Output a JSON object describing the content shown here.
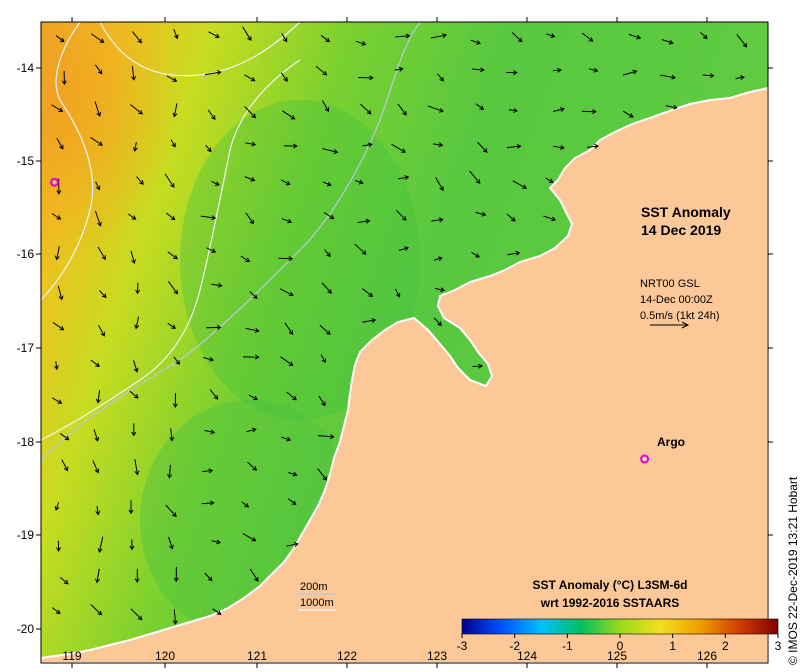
{
  "map": {
    "title_line1": "SST Anomaly",
    "title_line2": "14 Dec 2019",
    "current_info": {
      "line1": "NRT00 GSL",
      "line2": "14-Dec 00:00Z",
      "line3": "0.5m/s (1kt 24h)"
    },
    "argo_label": "Argo",
    "contour_labels": {
      "c200": "200m",
      "c1000": "1000m"
    },
    "colorbar": {
      "title_line1": "SST Anomaly (°C) L3SM-6d",
      "title_line2": "wrt 1992-2016 SSTAARS",
      "ticks": [
        "-3",
        "-2",
        "-1",
        "0",
        "1",
        "2",
        "3"
      ],
      "colors": [
        "#00008f",
        "#0050ff",
        "#00c0ff",
        "#00c060",
        "#9ad81c",
        "#f0e020",
        "#f0a000",
        "#d04000",
        "#800000"
      ]
    },
    "credit": "© IMOS 22-Dec-2019 13:21 Hobart",
    "axis": {
      "lon_ticks": [
        "119",
        "120",
        "121",
        "122",
        "123",
        "124",
        "125",
        "126"
      ],
      "lat_ticks": [
        "-14",
        "-15",
        "-16",
        "-17",
        "-18",
        "-19",
        "-20"
      ]
    },
    "colors": {
      "land": "#fcc898",
      "ocean_warm": "#f0a020",
      "ocean_mid": "#e8e020",
      "ocean_green": "#40c040"
    },
    "argo_float": {
      "lon": 118.8,
      "lat": -15.15
    },
    "argo_legend": {
      "lon": 125.35,
      "lat": -18.0
    }
  }
}
